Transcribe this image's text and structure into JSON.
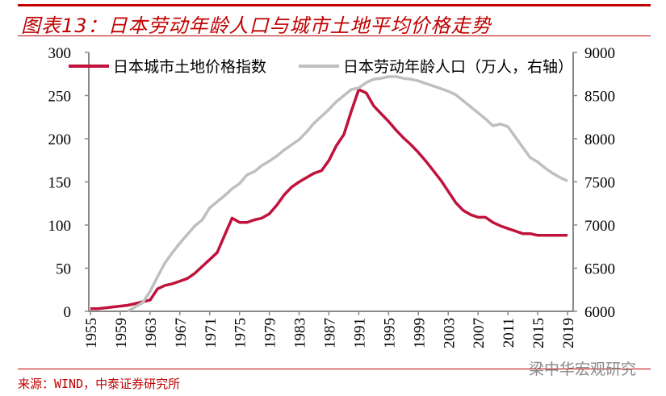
{
  "title": "图表13：日本劳动年龄人口与城市土地平均价格走势",
  "source": "来源：WIND，中泰证券研究所",
  "watermark": "梁中华宏观研究",
  "chart_data": {
    "type": "line",
    "x_ticks": [
      "1955",
      "1959",
      "1963",
      "1967",
      "1971",
      "1975",
      "1979",
      "1983",
      "1987",
      "1991",
      "1995",
      "1999",
      "2003",
      "2007",
      "2011",
      "2015",
      "2019"
    ],
    "y_left": {
      "range": [
        0,
        300
      ],
      "ticks": [
        0,
        50,
        100,
        150,
        200,
        250,
        300
      ]
    },
    "y_right": {
      "range": [
        6000,
        9000
      ],
      "ticks": [
        6000,
        6500,
        7000,
        7500,
        8000,
        8500,
        9000
      ]
    },
    "legend_position": "top",
    "grid": false,
    "series": [
      {
        "name": "日本城市土地价格指数",
        "axis": "left",
        "color": "#c0123c",
        "x": [
          1955,
          1956,
          1957,
          1958,
          1959,
          1960,
          1961,
          1962,
          1963,
          1964,
          1965,
          1966,
          1967,
          1968,
          1969,
          1970,
          1971,
          1972,
          1973,
          1974,
          1975,
          1976,
          1977,
          1978,
          1979,
          1980,
          1981,
          1982,
          1983,
          1984,
          1985,
          1986,
          1987,
          1988,
          1989,
          1990,
          1991,
          1992,
          1993,
          1994,
          1995,
          1996,
          1997,
          1998,
          1999,
          2000,
          2001,
          2002,
          2003,
          2004,
          2005,
          2006,
          2007,
          2008,
          2009,
          2010,
          2011,
          2012,
          2013,
          2014,
          2015,
          2016,
          2017,
          2018,
          2019
        ],
        "y": [
          3,
          3,
          4,
          5,
          6,
          7,
          9,
          11,
          13,
          26,
          30,
          32,
          35,
          38,
          44,
          52,
          60,
          68,
          88,
          108,
          103,
          103,
          106,
          108,
          113,
          123,
          135,
          144,
          150,
          155,
          160,
          163,
          175,
          192,
          205,
          232,
          257,
          253,
          238,
          229,
          220,
          210,
          201,
          193,
          184,
          174,
          163,
          152,
          139,
          126,
          117,
          112,
          109,
          109,
          103,
          99,
          96,
          93,
          90,
          90,
          88,
          88,
          88,
          88,
          88
        ]
      },
      {
        "name": "日本劳动年龄人口（万人，右轴）",
        "axis": "right",
        "color": "#bfbfbf",
        "x": [
          1960,
          1961,
          1962,
          1963,
          1964,
          1965,
          1966,
          1967,
          1968,
          1969,
          1970,
          1971,
          1972,
          1973,
          1974,
          1975,
          1976,
          1977,
          1978,
          1979,
          1980,
          1981,
          1982,
          1983,
          1984,
          1985,
          1986,
          1987,
          1988,
          1989,
          1990,
          1991,
          1992,
          1993,
          1994,
          1995,
          1996,
          1997,
          1998,
          1999,
          2000,
          2001,
          2002,
          2003,
          2004,
          2005,
          2006,
          2007,
          2008,
          2009,
          2010,
          2011,
          2012,
          2013,
          2014,
          2015,
          2016,
          2017,
          2018,
          2019
        ],
        "y": [
          6000,
          6050,
          6100,
          6230,
          6400,
          6560,
          6680,
          6790,
          6890,
          6990,
          7060,
          7200,
          7270,
          7340,
          7420,
          7480,
          7580,
          7620,
          7690,
          7740,
          7800,
          7870,
          7930,
          7990,
          8080,
          8180,
          8260,
          8340,
          8430,
          8500,
          8570,
          8590,
          8650,
          8690,
          8700,
          8720,
          8720,
          8700,
          8690,
          8670,
          8640,
          8610,
          8580,
          8550,
          8510,
          8440,
          8370,
          8300,
          8230,
          8150,
          8170,
          8140,
          8020,
          7900,
          7780,
          7730,
          7660,
          7600,
          7550,
          7510
        ]
      }
    ]
  }
}
